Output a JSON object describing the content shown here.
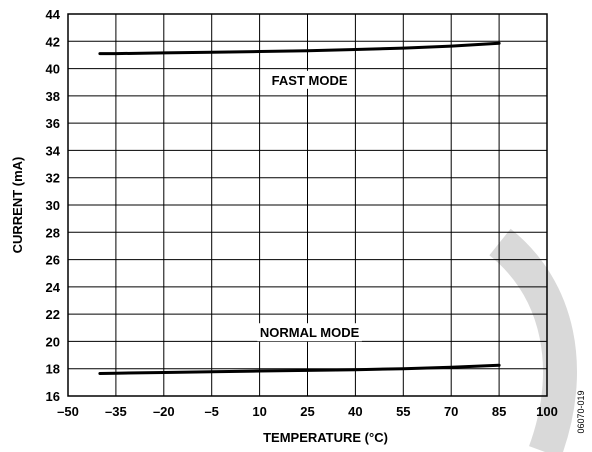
{
  "figure_id": "06070-019",
  "chart_data": {
    "type": "line",
    "xlabel": "TEMPERATURE (°C)",
    "ylabel": "CURRENT (mA)",
    "xlim": [
      -50,
      100
    ],
    "ylim": [
      16,
      44
    ],
    "x_ticks": [
      "–50",
      "–35",
      "–20",
      "–5",
      "10",
      "25",
      "40",
      "55",
      "70",
      "85",
      "100"
    ],
    "x_tick_values": [
      -50,
      -35,
      -20,
      -5,
      10,
      25,
      40,
      55,
      70,
      85,
      100
    ],
    "y_ticks": [
      "16",
      "18",
      "20",
      "22",
      "24",
      "26",
      "28",
      "30",
      "32",
      "34",
      "36",
      "38",
      "40",
      "42",
      "44"
    ],
    "y_tick_values": [
      16,
      18,
      20,
      22,
      24,
      26,
      28,
      30,
      32,
      34,
      36,
      38,
      40,
      42,
      44
    ],
    "grid": true,
    "series": [
      {
        "name": "FAST MODE",
        "x": [
          -40,
          -35,
          -20,
          -5,
          10,
          25,
          40,
          55,
          70,
          85
        ],
        "y": [
          41.1,
          41.1,
          41.15,
          41.2,
          41.25,
          41.3,
          41.4,
          41.5,
          41.65,
          41.85
        ]
      },
      {
        "name": "NORMAL MODE",
        "x": [
          -40,
          -35,
          -20,
          -5,
          10,
          25,
          40,
          55,
          70,
          85
        ],
        "y": [
          17.65,
          17.67,
          17.72,
          17.78,
          17.83,
          17.88,
          17.93,
          18.0,
          18.1,
          18.25
        ]
      }
    ]
  }
}
